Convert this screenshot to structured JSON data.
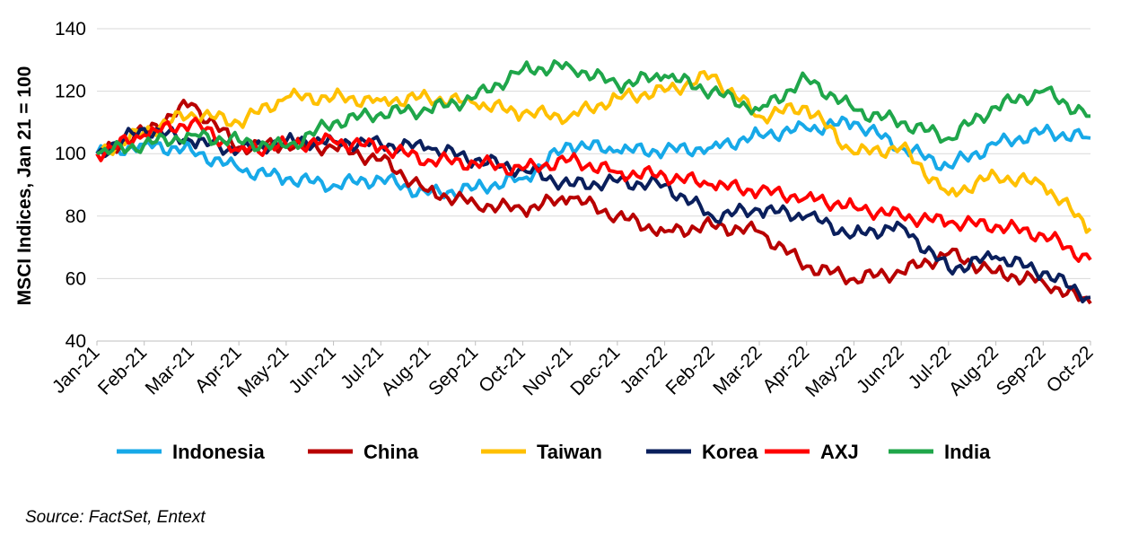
{
  "chart_data": {
    "type": "line",
    "title": "",
    "ylabel": "MSCI Indices, Jan 21 = 100",
    "xlabel": "",
    "ylim": [
      40,
      140
    ],
    "y_ticks": [
      40,
      60,
      80,
      100,
      120,
      140
    ],
    "grid": "horizontal",
    "legend_position": "bottom",
    "categories": [
      "Jan-21",
      "Feb-21",
      "Mar-21",
      "Apr-21",
      "May-21",
      "Jun-21",
      "Jul-21",
      "Aug-21",
      "Sep-21",
      "Oct-21",
      "Nov-21",
      "Dec-21",
      "Jan-22",
      "Feb-22",
      "Mar-22",
      "Apr-22",
      "May-22",
      "Jun-22",
      "Jul-22",
      "Aug-22",
      "Sep-22",
      "Oct-22"
    ],
    "series": [
      {
        "name": "Indonesia",
        "color": "#17A9E8",
        "values": [
          100,
          103,
          101,
          95,
          92,
          90,
          92,
          87,
          89,
          92,
          103,
          101,
          101,
          102,
          106,
          108,
          110,
          102,
          96,
          103,
          107,
          105
        ]
      },
      {
        "name": "China",
        "color": "#B80000",
        "values": [
          100,
          107,
          116,
          102,
          103,
          102,
          98,
          88,
          84,
          82,
          86,
          80,
          75,
          77,
          75,
          64,
          60,
          62,
          68,
          62,
          59,
          52
        ]
      },
      {
        "name": "Taiwan",
        "color": "#FFC000",
        "values": [
          100,
          107,
          113,
          110,
          118,
          118,
          117,
          118,
          116,
          113,
          112,
          118,
          120,
          125,
          112,
          115,
          100,
          102,
          87,
          93,
          90,
          76
        ]
      },
      {
        "name": "Korea",
        "color": "#0A1F5C",
        "values": [
          100,
          108,
          104,
          101,
          104,
          104,
          103,
          102,
          98,
          95,
          90,
          91,
          90,
          80,
          82,
          80,
          74,
          77,
          63,
          67,
          62,
          54
        ]
      },
      {
        "name": "AXJ",
        "color": "#FF0000",
        "values": [
          100,
          106,
          110,
          101,
          103,
          104,
          102,
          98,
          97,
          95,
          98,
          94,
          93,
          90,
          88,
          86,
          83,
          80,
          78,
          77,
          74,
          66
        ]
      },
      {
        "name": "India",
        "color": "#1FA64A",
        "values": [
          100,
          103,
          106,
          104,
          102,
          110,
          113,
          114,
          118,
          127,
          128,
          122,
          125,
          120,
          114,
          124,
          114,
          110,
          105,
          115,
          120,
          112
        ]
      }
    ]
  },
  "source_text": "Source: FactSet, Entext"
}
